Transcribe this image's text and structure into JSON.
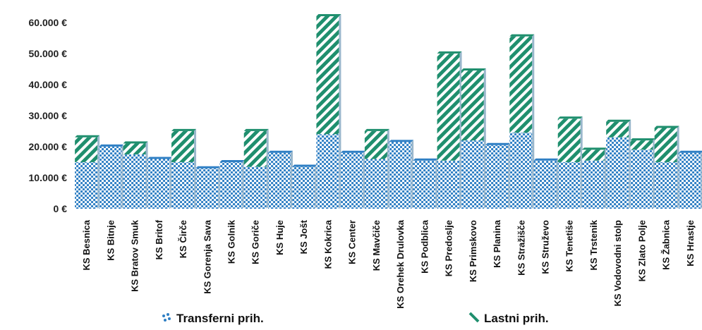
{
  "chart_data": {
    "type": "bar",
    "stacked": true,
    "categories": [
      "KS Besnica",
      "KS Bitnje",
      "KS Bratov Smuk",
      "KS Britof",
      "KS Čirče",
      "KS Gorenja Sava",
      "KS Golnik",
      "KS Goriče",
      "KS Huje",
      "KS Jošt",
      "KS Kokrica",
      "KS Center",
      "KS Mavčiče",
      "KS Orehek Drulovka",
      "KS Podblica",
      "KS Predoslje",
      "KS Primskovo",
      "KS Planina",
      "KS Stražišče",
      "KS Struževo",
      "KS Tenetiše",
      "KS Trstenik",
      "KS Vodovodni stolp",
      "KS Zlato Polje",
      "KS Žabnica",
      "KS Hrastje"
    ],
    "series": [
      {
        "name": "Transferni prih.",
        "color": "#3a8fd0",
        "pattern": "dots",
        "values": [
          15000,
          20000,
          17500,
          16000,
          15000,
          13000,
          15000,
          13500,
          18000,
          13500,
          24000,
          18000,
          16000,
          21500,
          15500,
          15500,
          22000,
          20500,
          24500,
          15500,
          15000,
          15500,
          23000,
          19000,
          15000,
          18000
        ]
      },
      {
        "name": "Lastni prih.",
        "color": "#1f8f6e",
        "pattern": "stripes",
        "values": [
          8000,
          0,
          3500,
          0,
          10000,
          0,
          0,
          11500,
          0,
          0,
          38000,
          0,
          9000,
          0,
          0,
          34500,
          22500,
          0,
          31000,
          0,
          14000,
          3500,
          5000,
          3000,
          11000,
          0
        ]
      }
    ],
    "yticks": [
      "0 €",
      "10.000 €",
      "20.000 €",
      "30.000 €",
      "40.000 €",
      "50.000 €",
      "60.000 €"
    ],
    "ylim": [
      0,
      62000
    ]
  }
}
